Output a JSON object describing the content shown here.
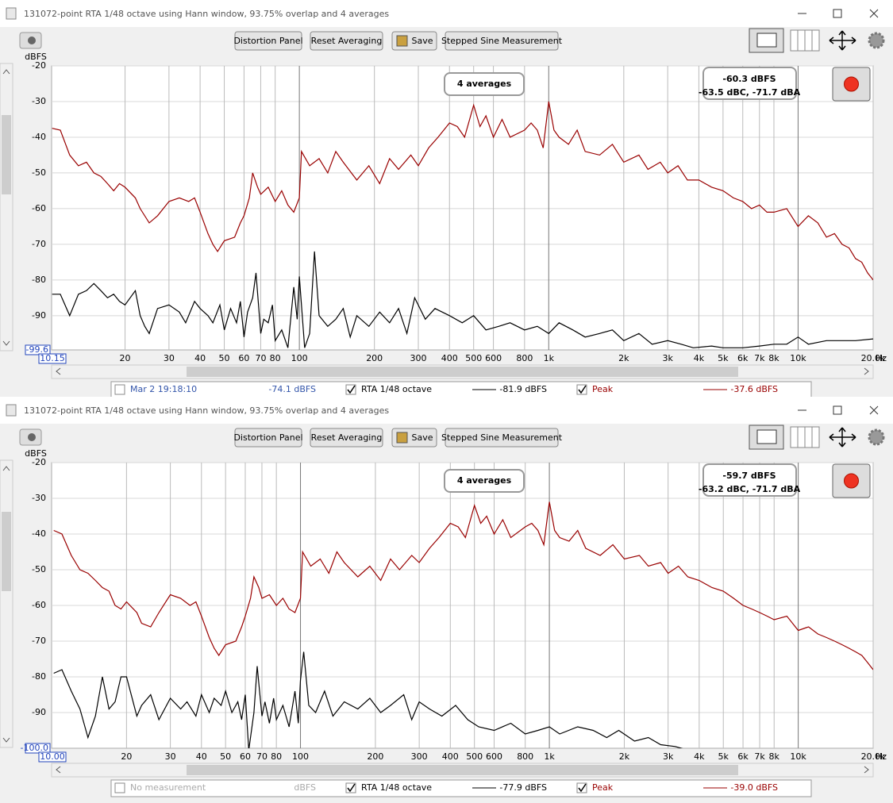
{
  "windows": [
    {
      "title": "131072-point RTA 1/48 octave using Hann window, 93.75% overlap and 4 averages",
      "buttons": [
        "Distortion Panel",
        "Reset Averaging",
        "Save",
        "Stepped Sine Measurement"
      ],
      "averages": "4 averages",
      "level": "-60.3 dBFS",
      "level_detail": "-63.5 dBC, -71.7 dBA",
      "legend": {
        "measurement": "Mar 2 19:18:10",
        "measurement_level": "-74.1 dBFS",
        "measurement_disabled": false
      },
      "chart_data": {
        "type": "line",
        "y_label": "dBFS",
        "x_label": "Hz",
        "xscale": "log",
        "grid": true,
        "xlim": [
          10.15,
          20000
        ],
        "ylim": [
          -99.6,
          -20
        ],
        "x_min_label": "10.15",
        "y_min_label": "-99.6",
        "xticks": [
          20,
          30,
          40,
          50,
          60,
          70,
          80,
          100,
          200,
          300,
          400,
          500,
          600,
          800,
          {
            "value": 1000,
            "label": "1k"
          },
          {
            "value": 2000,
            "label": "2k"
          },
          {
            "value": 3000,
            "label": "3k"
          },
          {
            "value": 4000,
            "label": "4k"
          },
          {
            "value": 5000,
            "label": "5k"
          },
          {
            "value": 6000,
            "label": "6k"
          },
          {
            "value": 7000,
            "label": "7k"
          },
          {
            "value": 8000,
            "label": "8k"
          },
          {
            "value": 10000,
            "label": "10k"
          },
          {
            "value": 20000,
            "label": "20.0k"
          }
        ],
        "yticks": [
          -20,
          -30,
          -40,
          -50,
          -60,
          -70,
          -80,
          -90
        ],
        "series": [
          {
            "name": "RTA 1/48 octave",
            "color": "#000000",
            "checked": true,
            "readout": "-81.9 dBFS",
            "x": [
              10.2,
              11,
              12,
              13,
              14,
              15,
              16,
              17,
              18,
              19,
              20,
              22,
              23,
              24,
              25,
              27,
              30,
              33,
              35,
              38,
              40,
              43,
              45,
              48,
              50,
              53,
              56,
              58,
              60,
              62,
              65,
              67,
              70,
              72,
              75,
              78,
              80,
              85,
              90,
              95,
              98,
              100,
              105,
              110,
              115,
              120,
              130,
              140,
              150,
              160,
              170,
              190,
              210,
              230,
              250,
              270,
              290,
              320,
              350,
              400,
              450,
              500,
              560,
              630,
              700,
              800,
              900,
              1000,
              1100,
              1250,
              1400,
              1600,
              1800,
              2000,
              2300,
              2600,
              3000,
              3400,
              3800,
              4500,
              5000,
              6000,
              7000,
              8000,
              9000,
              10000,
              11000,
              13000,
              15000,
              17000,
              20000
            ],
            "values": [
              -84,
              -84,
              -90,
              -84,
              -83,
              -81,
              -83,
              -85,
              -84,
              -86,
              -87,
              -83,
              -90,
              -93,
              -95,
              -88,
              -87,
              -89,
              -92,
              -86,
              -88,
              -90,
              -92,
              -87,
              -94,
              -88,
              -92,
              -86,
              -96,
              -89,
              -85,
              -78,
              -95,
              -91,
              -92,
              -87,
              -97,
              -94,
              -99,
              -82,
              -91,
              -79,
              -99,
              -95,
              -72,
              -90,
              -93,
              -91,
              -88,
              -96,
              -90,
              -93,
              -89,
              -92,
              -88,
              -95,
              -85,
              -91,
              -88,
              -90,
              -92,
              -90,
              -94,
              -93,
              -92,
              -94,
              -93,
              -95,
              -92,
              -94,
              -96,
              -95,
              -94,
              -97,
              -95,
              -98,
              -97,
              -98,
              -99,
              -98.5,
              -99,
              -99,
              -98.5,
              -98,
              -98,
              -96,
              -98,
              -97,
              -97,
              -97,
              -96.5
            ]
          },
          {
            "name": "Peak",
            "color": "#990000",
            "checked": true,
            "readout": "-37.6 dBFS",
            "x": [
              10.2,
              11,
              12,
              13,
              14,
              15,
              16,
              17,
              18,
              19,
              20,
              22,
              23,
              25,
              27,
              30,
              33,
              36,
              38,
              40,
              43,
              45,
              47,
              50,
              55,
              58,
              60,
              63,
              65,
              68,
              70,
              75,
              80,
              85,
              90,
              95,
              100,
              102,
              110,
              120,
              130,
              140,
              150,
              170,
              190,
              210,
              230,
              250,
              280,
              300,
              330,
              360,
              400,
              430,
              460,
              500,
              530,
              560,
              600,
              650,
              700,
              800,
              850,
              900,
              950,
              1000,
              1050,
              1100,
              1200,
              1300,
              1400,
              1600,
              1800,
              2000,
              2300,
              2500,
              2800,
              3000,
              3300,
              3600,
              4000,
              4500,
              5000,
              5500,
              6000,
              6500,
              7000,
              7500,
              8000,
              9000,
              10000,
              11000,
              12000,
              13000,
              14000,
              15000,
              16000,
              17000,
              18000,
              19000,
              20000
            ],
            "values": [
              -37.5,
              -38,
              -45,
              -48,
              -47,
              -50,
              -51,
              -53,
              -55,
              -53,
              -54,
              -57,
              -60,
              -64,
              -62,
              -58,
              -57,
              -58,
              -57,
              -61,
              -67,
              -70,
              -72,
              -69,
              -68,
              -64,
              -62,
              -57,
              -50,
              -54,
              -56,
              -54,
              -58,
              -55,
              -59,
              -61,
              -57,
              -44,
              -48,
              -46,
              -50,
              -44,
              -47,
              -52,
              -48,
              -53,
              -46,
              -49,
              -45,
              -48,
              -43,
              -40,
              -36,
              -37,
              -40,
              -31,
              -37,
              -34,
              -40,
              -35,
              -40,
              -38,
              -36,
              -38,
              -43,
              -30,
              -38,
              -40,
              -42,
              -38,
              -44,
              -45,
              -42,
              -47,
              -45,
              -49,
              -47,
              -50,
              -48,
              -52,
              -52,
              -54,
              -55,
              -57,
              -58,
              -60,
              -59,
              -61,
              -61,
              -60,
              -65,
              -62,
              -64,
              -68,
              -67,
              -70,
              -71,
              -74,
              -75,
              -78,
              -80
            ]
          }
        ]
      }
    },
    {
      "title": "131072-point RTA 1/48 octave using Hann window, 93.75% overlap and 4 averages",
      "buttons": [
        "Distortion Panel",
        "Reset Averaging",
        "Save",
        "Stepped Sine Measurement"
      ],
      "averages": "4 averages",
      "level": "-59.7 dBFS",
      "level_detail": "-63.2 dBC, -71.7 dBA",
      "legend": {
        "measurement": "No measurement",
        "measurement_level": "dBFS",
        "measurement_disabled": true
      },
      "chart_data": {
        "type": "line",
        "y_label": "dBFS",
        "x_label": "Hz",
        "xscale": "log",
        "grid": true,
        "xlim": [
          10,
          20000
        ],
        "ylim": [
          -100,
          -20
        ],
        "x_min_label": "10.00",
        "y_min_label": "-100.0",
        "xticks": [
          20,
          30,
          40,
          50,
          60,
          70,
          80,
          100,
          200,
          300,
          400,
          500,
          600,
          800,
          {
            "value": 1000,
            "label": "1k"
          },
          {
            "value": 2000,
            "label": "2k"
          },
          {
            "value": 3000,
            "label": "3k"
          },
          {
            "value": 4000,
            "label": "4k"
          },
          {
            "value": 5000,
            "label": "5k"
          },
          {
            "value": 6000,
            "label": "6k"
          },
          {
            "value": 7000,
            "label": "7k"
          },
          {
            "value": 8000,
            "label": "8k"
          },
          {
            "value": 10000,
            "label": "10k"
          },
          {
            "value": 20000,
            "label": "20.0k"
          }
        ],
        "yticks": [
          -20,
          -30,
          -40,
          -50,
          -60,
          -70,
          -80,
          -90
        ],
        "series": [
          {
            "name": "RTA 1/48 octave",
            "color": "#000000",
            "checked": true,
            "readout": "-77.9 dBFS",
            "x": [
              10.2,
              11,
              12,
              13,
              14,
              15,
              16,
              17,
              18,
              19,
              20,
              22,
              23,
              25,
              27,
              30,
              33,
              35,
              38,
              40,
              43,
              45,
              48,
              50,
              53,
              56,
              58,
              60,
              62,
              65,
              67,
              70,
              72,
              75,
              78,
              80,
              85,
              90,
              95,
              98,
              100,
              103,
              108,
              115,
              125,
              135,
              150,
              170,
              190,
              210,
              230,
              260,
              280,
              300,
              330,
              370,
              420,
              470,
              520,
              600,
              700,
              800,
              900,
              1000,
              1100,
              1300,
              1500,
              1700,
              1900,
              2200,
              2500,
              2800,
              3200,
              3600
            ],
            "values": [
              -79,
              -78,
              -84,
              -89,
              -97,
              -91,
              -80,
              -89,
              -87,
              -80,
              -80,
              -91,
              -88,
              -85,
              -92,
              -86,
              -89,
              -87,
              -91,
              -85,
              -90,
              -86,
              -88,
              -84,
              -90,
              -87,
              -92,
              -85,
              -100.5,
              -90,
              -77,
              -91,
              -87,
              -93,
              -86,
              -92,
              -88,
              -94,
              -84,
              -93,
              -81,
              -73,
              -88,
              -90,
              -84,
              -91,
              -87,
              -89,
              -86,
              -90,
              -88,
              -85,
              -92,
              -87,
              -89,
              -91,
              -88,
              -92,
              -94,
              -95,
              -93,
              -96,
              -95,
              -94,
              -96,
              -94,
              -95,
              -97,
              -95,
              -98,
              -97,
              -99,
              -99.5,
              -100.5
            ]
          },
          {
            "name": "Peak",
            "color": "#990000",
            "checked": true,
            "readout": "-39.0 dBFS",
            "x": [
              10.2,
              11,
              12,
              13,
              14,
              15,
              16,
              17,
              18,
              19,
              20,
              22,
              23,
              25,
              27,
              30,
              33,
              36,
              38,
              40,
              43,
              45,
              47,
              50,
              55,
              58,
              60,
              63,
              65,
              68,
              70,
              75,
              80,
              85,
              90,
              95,
              100,
              102,
              110,
              120,
              130,
              140,
              150,
              170,
              190,
              210,
              230,
              250,
              280,
              300,
              330,
              360,
              400,
              430,
              460,
              500,
              530,
              560,
              600,
              650,
              700,
              800,
              850,
              900,
              950,
              1000,
              1050,
              1100,
              1200,
              1300,
              1400,
              1600,
              1800,
              2000,
              2300,
              2500,
              2800,
              3000,
              3300,
              3600,
              4000,
              4500,
              5000,
              5500,
              6000,
              6500,
              7000,
              7500,
              8000,
              9000,
              10000,
              11000,
              12000,
              13000,
              14000,
              15000,
              16000,
              17000,
              18000,
              19000,
              20000
            ],
            "values": [
              -39,
              -40,
              -46,
              -50,
              -51,
              -53,
              -55,
              -56,
              -60,
              -61,
              -59,
              -62,
              -65,
              -66,
              -62,
              -57,
              -58,
              -60,
              -59,
              -63,
              -69,
              -72,
              -74,
              -71,
              -70,
              -66,
              -63,
              -58,
              -52,
              -55,
              -58,
              -57,
              -60,
              -58,
              -61,
              -62,
              -58,
              -45,
              -49,
              -47,
              -51,
              -45,
              -48,
              -52,
              -49,
              -53,
              -47,
              -50,
              -46,
              -48,
              -44,
              -41,
              -37,
              -38,
              -41,
              -32,
              -37,
              -35,
              -40,
              -36,
              -41,
              -38,
              -37,
              -39,
              -43,
              -31,
              -39,
              -41,
              -42,
              -39,
              -44,
              -46,
              -43,
              -47,
              -46,
              -49,
              -48,
              -51,
              -49,
              -52,
              -53,
              -55,
              -56,
              -58,
              -60,
              -61,
              -62,
              -63,
              -64,
              -63,
              -67,
              -66,
              -68,
              -69,
              -70,
              -71,
              -72,
              -73,
              -74,
              -76,
              -78
            ]
          }
        ]
      }
    }
  ]
}
